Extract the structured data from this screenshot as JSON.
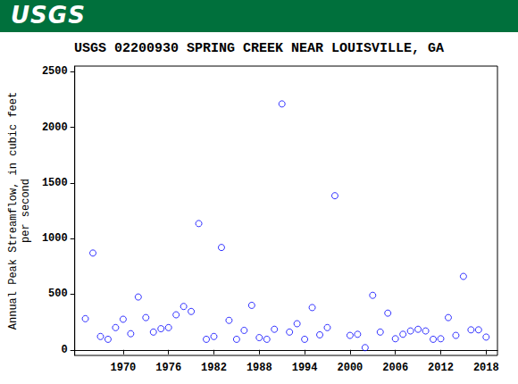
{
  "header": {
    "logo_text": "USGS"
  },
  "chart_data": {
    "type": "scatter",
    "title": "USGS 02200930 SPRING CREEK NEAR LOUISVILLE, GA",
    "ylabel": "Annual Peak Streamflow, in cubic feet\nper second",
    "x": [
      1965,
      1966,
      1967,
      1968,
      1969,
      1970,
      1971,
      1972,
      1973,
      1974,
      1975,
      1976,
      1977,
      1978,
      1979,
      1980,
      1981,
      1982,
      1983,
      1984,
      1985,
      1986,
      1987,
      1988,
      1989,
      1990,
      1991,
      1992,
      1993,
      1994,
      1995,
      1996,
      1997,
      1998,
      2000,
      2001,
      2002,
      2003,
      2004,
      2005,
      2006,
      2007,
      2008,
      2009,
      2010,
      2011,
      2012,
      2013,
      2014,
      2015,
      2016,
      2017,
      2018
    ],
    "values": [
      280,
      870,
      120,
      95,
      200,
      275,
      145,
      475,
      290,
      160,
      190,
      200,
      315,
      390,
      345,
      1135,
      95,
      120,
      920,
      265,
      95,
      175,
      400,
      110,
      95,
      185,
      2210,
      160,
      235,
      95,
      380,
      135,
      200,
      1385,
      130,
      140,
      20,
      490,
      160,
      330,
      100,
      140,
      170,
      185,
      170,
      95,
      100,
      290,
      130,
      660,
      180,
      180,
      115
    ],
    "color": "#0000ff",
    "marker": "circle_open",
    "xlim": [
      1963.6,
      2019.5
    ],
    "xticks": [
      1970,
      1976,
      1982,
      1988,
      1994,
      2000,
      2006,
      2012,
      2018
    ],
    "ylim": [
      -50,
      2550
    ],
    "yticks": [
      0,
      500,
      1000,
      1500,
      2000,
      2500
    ],
    "grid": false
  }
}
